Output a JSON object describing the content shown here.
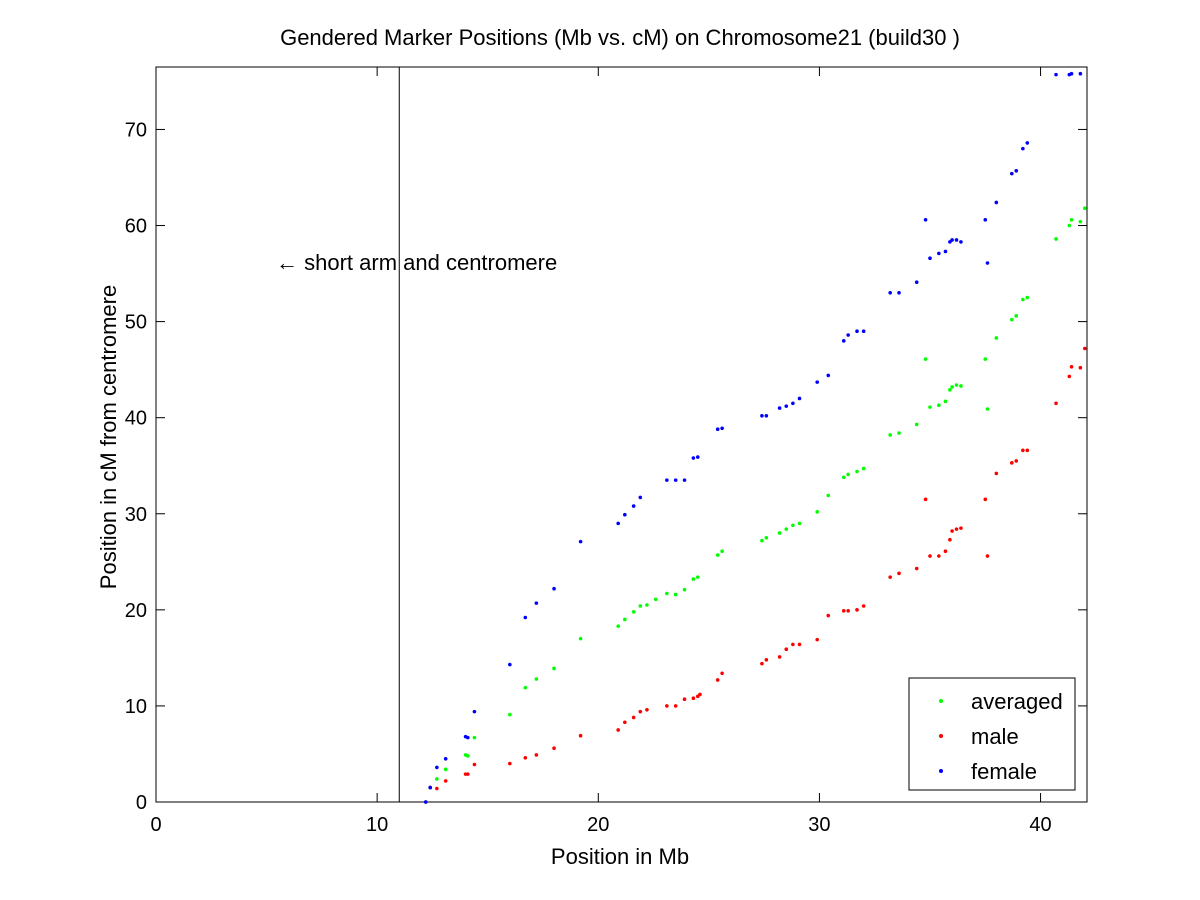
{
  "chart_data": {
    "type": "scatter",
    "title": "Gendered Marker Positions (Mb vs. cM) on Chromosome21 (build30 )",
    "xlabel": "Position in Mb",
    "ylabel": "Position in cM from centromere",
    "xlim": [
      0,
      42.1
    ],
    "ylim": [
      0,
      76.5
    ],
    "xticks": [
      0,
      10,
      20,
      30,
      40
    ],
    "yticks": [
      0,
      10,
      20,
      30,
      40,
      50,
      60,
      70
    ],
    "grid": false,
    "legend_position": "bottom-right",
    "annotation": {
      "text": "← short arm and centromere",
      "arrow": "left"
    },
    "reference_line": {
      "x": 11.0,
      "style": "solid",
      "color": "#000000"
    },
    "series": [
      {
        "name": "averaged",
        "color": "#00ff00",
        "points": [
          [
            12.2,
            0.0
          ],
          [
            12.4,
            1.5
          ],
          [
            12.7,
            2.4
          ],
          [
            13.1,
            3.4
          ],
          [
            14.0,
            4.9
          ],
          [
            14.1,
            4.8
          ],
          [
            14.4,
            6.7
          ],
          [
            16.0,
            9.1
          ],
          [
            16.7,
            11.9
          ],
          [
            17.2,
            12.8
          ],
          [
            18.0,
            13.9
          ],
          [
            19.2,
            17.0
          ],
          [
            20.9,
            18.3
          ],
          [
            21.2,
            19.0
          ],
          [
            21.6,
            19.8
          ],
          [
            21.9,
            20.4
          ],
          [
            22.2,
            20.5
          ],
          [
            22.6,
            21.1
          ],
          [
            23.1,
            21.7
          ],
          [
            23.5,
            21.6
          ],
          [
            23.9,
            22.1
          ],
          [
            24.3,
            23.2
          ],
          [
            24.5,
            23.4
          ],
          [
            25.4,
            25.7
          ],
          [
            25.6,
            26.1
          ],
          [
            27.4,
            27.2
          ],
          [
            27.6,
            27.5
          ],
          [
            28.2,
            28.0
          ],
          [
            28.5,
            28.4
          ],
          [
            28.8,
            28.8
          ],
          [
            29.1,
            29.0
          ],
          [
            29.9,
            30.2
          ],
          [
            30.4,
            31.9
          ],
          [
            31.1,
            33.8
          ],
          [
            31.3,
            34.1
          ],
          [
            31.7,
            34.4
          ],
          [
            32.0,
            34.7
          ],
          [
            33.2,
            38.2
          ],
          [
            33.6,
            38.4
          ],
          [
            34.4,
            39.3
          ],
          [
            34.8,
            46.1
          ],
          [
            35.0,
            41.1
          ],
          [
            35.4,
            41.3
          ],
          [
            35.7,
            41.7
          ],
          [
            35.9,
            42.9
          ],
          [
            36.0,
            43.2
          ],
          [
            36.2,
            43.4
          ],
          [
            36.4,
            43.3
          ],
          [
            37.5,
            46.1
          ],
          [
            37.6,
            40.9
          ],
          [
            38.0,
            48.3
          ],
          [
            38.7,
            50.2
          ],
          [
            38.9,
            50.6
          ],
          [
            39.2,
            52.3
          ],
          [
            39.4,
            52.5
          ],
          [
            40.7,
            58.6
          ],
          [
            41.3,
            60.0
          ],
          [
            41.4,
            60.6
          ],
          [
            41.8,
            60.4
          ],
          [
            42.0,
            61.8
          ]
        ]
      },
      {
        "name": "male",
        "color": "#ff0000",
        "points": [
          [
            12.2,
            0.0
          ],
          [
            12.4,
            1.5
          ],
          [
            12.7,
            1.4
          ],
          [
            13.1,
            2.2
          ],
          [
            14.0,
            2.9
          ],
          [
            14.1,
            2.9
          ],
          [
            14.4,
            3.9
          ],
          [
            16.0,
            4.0
          ],
          [
            16.7,
            4.6
          ],
          [
            17.2,
            4.9
          ],
          [
            18.0,
            5.6
          ],
          [
            19.2,
            6.9
          ],
          [
            20.9,
            7.5
          ],
          [
            21.2,
            8.3
          ],
          [
            21.6,
            8.8
          ],
          [
            21.9,
            9.4
          ],
          [
            22.2,
            9.6
          ],
          [
            23.1,
            10.0
          ],
          [
            23.5,
            10.0
          ],
          [
            23.9,
            10.7
          ],
          [
            24.3,
            10.8
          ],
          [
            24.5,
            11.0
          ],
          [
            24.6,
            11.2
          ],
          [
            25.4,
            12.7
          ],
          [
            25.6,
            13.4
          ],
          [
            27.4,
            14.4
          ],
          [
            27.6,
            14.8
          ],
          [
            28.2,
            15.1
          ],
          [
            28.5,
            15.9
          ],
          [
            28.8,
            16.4
          ],
          [
            29.1,
            16.4
          ],
          [
            29.9,
            16.9
          ],
          [
            30.4,
            19.4
          ],
          [
            31.1,
            19.9
          ],
          [
            31.3,
            19.9
          ],
          [
            31.7,
            20.0
          ],
          [
            32.0,
            20.4
          ],
          [
            33.2,
            23.4
          ],
          [
            33.6,
            23.8
          ],
          [
            34.4,
            24.3
          ],
          [
            34.8,
            31.5
          ],
          [
            35.0,
            25.6
          ],
          [
            35.4,
            25.6
          ],
          [
            35.7,
            26.1
          ],
          [
            35.9,
            27.3
          ],
          [
            36.0,
            28.2
          ],
          [
            36.2,
            28.4
          ],
          [
            36.4,
            28.5
          ],
          [
            37.5,
            31.5
          ],
          [
            37.6,
            25.6
          ],
          [
            38.0,
            34.2
          ],
          [
            38.7,
            35.3
          ],
          [
            38.9,
            35.5
          ],
          [
            39.2,
            36.6
          ],
          [
            39.4,
            36.6
          ],
          [
            40.7,
            41.5
          ],
          [
            41.3,
            44.3
          ],
          [
            41.4,
            45.3
          ],
          [
            41.8,
            45.2
          ],
          [
            42.0,
            47.2
          ]
        ]
      },
      {
        "name": "female",
        "color": "#0000ff",
        "points": [
          [
            12.2,
            0.0
          ],
          [
            12.4,
            1.5
          ],
          [
            12.7,
            3.6
          ],
          [
            13.1,
            4.5
          ],
          [
            14.0,
            6.8
          ],
          [
            14.1,
            6.7
          ],
          [
            14.4,
            9.4
          ],
          [
            16.0,
            14.3
          ],
          [
            16.7,
            19.2
          ],
          [
            17.2,
            20.7
          ],
          [
            18.0,
            22.2
          ],
          [
            19.2,
            27.1
          ],
          [
            20.9,
            29.0
          ],
          [
            21.2,
            29.9
          ],
          [
            21.6,
            30.8
          ],
          [
            21.9,
            31.7
          ],
          [
            23.1,
            33.5
          ],
          [
            23.5,
            33.5
          ],
          [
            23.9,
            33.5
          ],
          [
            24.3,
            35.8
          ],
          [
            24.5,
            35.9
          ],
          [
            25.4,
            38.8
          ],
          [
            25.6,
            38.9
          ],
          [
            27.4,
            40.2
          ],
          [
            27.6,
            40.2
          ],
          [
            28.2,
            41.0
          ],
          [
            28.5,
            41.2
          ],
          [
            28.8,
            41.5
          ],
          [
            29.1,
            42.0
          ],
          [
            29.9,
            43.7
          ],
          [
            30.4,
            44.4
          ],
          [
            31.1,
            48.0
          ],
          [
            31.3,
            48.6
          ],
          [
            31.7,
            49.0
          ],
          [
            32.0,
            49.0
          ],
          [
            33.2,
            53.0
          ],
          [
            33.6,
            53.0
          ],
          [
            34.4,
            54.1
          ],
          [
            34.8,
            60.6
          ],
          [
            35.0,
            56.6
          ],
          [
            35.4,
            57.1
          ],
          [
            35.7,
            57.3
          ],
          [
            35.9,
            58.3
          ],
          [
            36.0,
            58.5
          ],
          [
            36.2,
            58.5
          ],
          [
            36.4,
            58.3
          ],
          [
            37.5,
            60.6
          ],
          [
            37.6,
            56.1
          ],
          [
            38.0,
            62.4
          ],
          [
            38.7,
            65.4
          ],
          [
            38.9,
            65.7
          ],
          [
            39.2,
            68.0
          ],
          [
            39.4,
            68.6
          ],
          [
            40.7,
            75.7
          ],
          [
            41.3,
            75.7
          ],
          [
            41.4,
            75.8
          ],
          [
            41.8,
            75.8
          ]
        ]
      }
    ]
  }
}
